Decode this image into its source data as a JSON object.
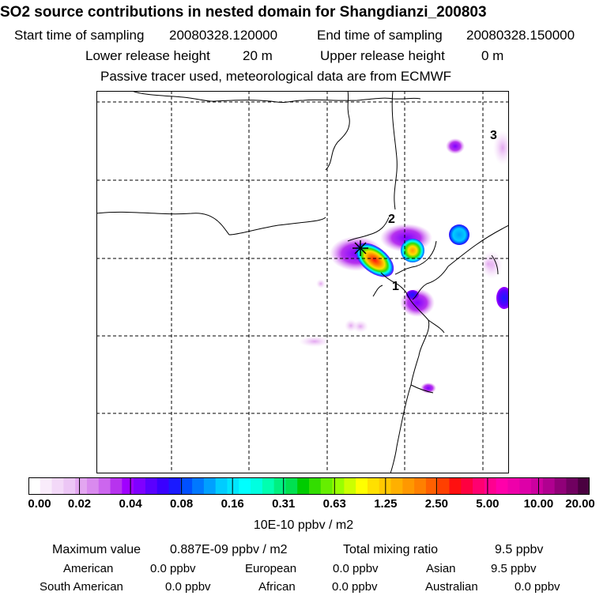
{
  "header": {
    "title": "SO2 source contributions in nested domain for Shangdianzi_200803",
    "start_label": "Start time of sampling",
    "start_value": "20080328.120000",
    "end_label": "End time of sampling",
    "end_value": "20080328.150000",
    "lower_label": "Lower release height",
    "lower_value": "20 m",
    "upper_label": "Upper release height",
    "upper_value": "0 m",
    "note": "Passive tracer used, meteorological data are from ECMWF"
  },
  "chart_data": {
    "type": "heatmap",
    "receptor_marker": "asterisk",
    "region_labels": [
      "1",
      "2",
      "3"
    ],
    "colorbar": {
      "ticks": [
        "0.00",
        "0.02",
        "0.04",
        "0.08",
        "0.16",
        "0.31",
        "0.63",
        "1.25",
        "2.50",
        "5.00",
        "10.00",
        "20.00"
      ],
      "unit": "10E-10 ppbv / m2",
      "colors": [
        "#ffffff",
        "#f9ecfb",
        "#f3d9f8",
        "#ecc6f5",
        "#e3a6f0",
        "#d98aee",
        "#cc66ee",
        "#b733ee",
        "#a000ff",
        "#7f00ff",
        "#5a00ff",
        "#3a00ff",
        "#1a1aff",
        "#0050ff",
        "#0078ff",
        "#00a0ff",
        "#00ccff",
        "#00e6ff",
        "#00ffff",
        "#00ffe0",
        "#00ffb0",
        "#00f080",
        "#00e050",
        "#00cc00",
        "#33dd00",
        "#66ee00",
        "#99ff00",
        "#ccff00",
        "#ffff00",
        "#ffe000",
        "#ffc800",
        "#ffb000",
        "#ff9800",
        "#ff8000",
        "#ff6000",
        "#ff4000",
        "#ff1010",
        "#ff0040",
        "#ff0070",
        "#ff0090",
        "#ff00aa",
        "#ee00aa",
        "#dd00a8",
        "#cc00a0",
        "#b00090",
        "#900078",
        "#700060",
        "#4a0040"
      ]
    }
  },
  "stats": {
    "max_label": "Maximum value",
    "max_value": "0.887E-09 ppbv / m2",
    "total_label": "Total mixing ratio",
    "total_value": "9.5 ppbv"
  },
  "regions": [
    {
      "name": "American",
      "value": "0.0 ppbv"
    },
    {
      "name": "European",
      "value": "0.0 ppbv"
    },
    {
      "name": "Asian",
      "value": "9.5 ppbv"
    },
    {
      "name": "South American",
      "value": "0.0 ppbv"
    },
    {
      "name": "African",
      "value": "0.0 ppbv"
    },
    {
      "name": "Australian",
      "value": "0.0 ppbv"
    }
  ]
}
